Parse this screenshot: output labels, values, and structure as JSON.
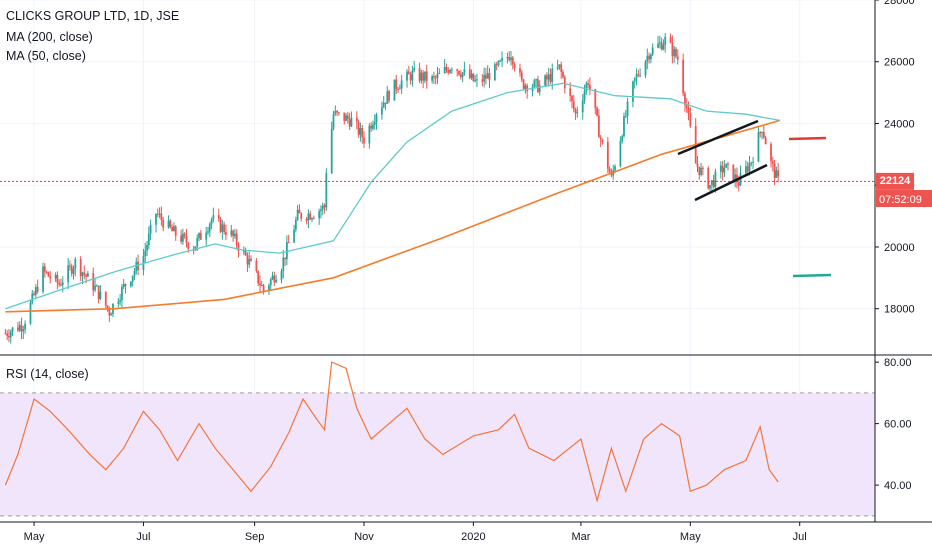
{
  "chart_data": [
    {
      "type": "candlestick",
      "title": "CLICKS GROUP LTD, 1D, JSE",
      "indicators": [
        "MA (200, close)",
        "MA (50, close)"
      ],
      "ylim": [
        16500,
        28000
      ],
      "y_ticks": [
        "28000",
        "26000",
        "24000",
        "22000",
        "20000",
        "18000"
      ],
      "x_ticks": [
        "May",
        "Jul",
        "Sep",
        "Nov",
        "2020",
        "Mar",
        "May",
        "Jul"
      ],
      "last_price": "22124",
      "countdown": "07:52:09",
      "price_keypoints": [
        [
          "2019-04-15",
          17200
        ],
        [
          "2019-04-25",
          17500
        ],
        [
          "2019-05-06",
          19200
        ],
        [
          "2019-05-15",
          18800
        ],
        [
          "2019-05-24",
          19500
        ],
        [
          "2019-06-05",
          18600
        ],
        [
          "2019-06-12",
          17900
        ],
        [
          "2019-06-20",
          18700
        ],
        [
          "2019-07-01",
          19700
        ],
        [
          "2019-07-08",
          21100
        ],
        [
          "2019-07-17",
          20500
        ],
        [
          "2019-07-29",
          20000
        ],
        [
          "2019-08-08",
          20900
        ],
        [
          "2019-08-19",
          20400
        ],
        [
          "2019-08-29",
          19500
        ],
        [
          "2019-09-06",
          18600
        ],
        [
          "2019-09-16",
          19400
        ],
        [
          "2019-09-25",
          21000
        ],
        [
          "2019-10-04",
          21100
        ],
        [
          "2019-10-10",
          21300
        ],
        [
          "2019-10-11",
          22500
        ],
        [
          "2019-10-15",
          24300
        ],
        [
          "2019-10-25",
          24100
        ],
        [
          "2019-11-01",
          23500
        ],
        [
          "2019-11-08",
          24400
        ],
        [
          "2019-11-18",
          25200
        ],
        [
          "2019-11-28",
          25600
        ],
        [
          "2019-12-10",
          25400
        ],
        [
          "2019-12-20",
          25900
        ],
        [
          "2020-01-03",
          25300
        ],
        [
          "2020-01-13",
          25700
        ],
        [
          "2020-01-22",
          26300
        ],
        [
          "2020-01-28",
          25300
        ],
        [
          "2020-02-07",
          25200
        ],
        [
          "2020-02-18",
          25800
        ],
        [
          "2020-02-27",
          24300
        ],
        [
          "2020-03-05",
          25400
        ],
        [
          "2020-03-12",
          23500
        ],
        [
          "2020-03-18",
          22200
        ],
        [
          "2020-03-24",
          23800
        ],
        [
          "2020-03-31",
          25400
        ],
        [
          "2020-04-08",
          26300
        ],
        [
          "2020-04-17",
          26700
        ],
        [
          "2020-04-24",
          26100
        ],
        [
          "2020-04-29",
          24500
        ],
        [
          "2020-05-04",
          22700
        ],
        [
          "2020-05-12",
          22000
        ],
        [
          "2020-05-20",
          22600
        ],
        [
          "2020-05-28",
          22100
        ],
        [
          "2020-06-04",
          22800
        ],
        [
          "2020-06-10",
          23900
        ],
        [
          "2020-06-15",
          22700
        ],
        [
          "2020-06-19",
          22124
        ]
      ],
      "ma50_keypoints": [
        [
          "2019-04-15",
          18000
        ],
        [
          "2019-05-15",
          18600
        ],
        [
          "2019-06-15",
          19200
        ],
        [
          "2019-07-15",
          19700
        ],
        [
          "2019-08-10",
          20100
        ],
        [
          "2019-08-25",
          19900
        ],
        [
          "2019-09-15",
          19800
        ],
        [
          "2019-10-15",
          20200
        ],
        [
          "2019-11-05",
          22100
        ],
        [
          "2019-11-25",
          23400
        ],
        [
          "2019-12-20",
          24400
        ],
        [
          "2020-01-20",
          25000
        ],
        [
          "2020-02-20",
          25300
        ],
        [
          "2020-03-20",
          24900
        ],
        [
          "2020-04-20",
          24800
        ],
        [
          "2020-05-10",
          24400
        ],
        [
          "2020-06-01",
          24300
        ],
        [
          "2020-06-20",
          24100
        ]
      ],
      "ma200_keypoints": [
        [
          "2019-04-15",
          17900
        ],
        [
          "2019-06-15",
          18000
        ],
        [
          "2019-08-15",
          18300
        ],
        [
          "2019-10-15",
          19000
        ],
        [
          "2019-12-15",
          20300
        ],
        [
          "2020-02-15",
          21700
        ],
        [
          "2020-04-15",
          23000
        ],
        [
          "2020-06-20",
          24100
        ]
      ]
    },
    {
      "type": "line",
      "title": "RSI (14, close)",
      "ylim": [
        28,
        82
      ],
      "y_ticks": [
        "80.00",
        "60.00",
        "40.00"
      ],
      "band": [
        30,
        70
      ],
      "rsi_keypoints": [
        [
          "2019-04-15",
          40
        ],
        [
          "2019-04-22",
          50
        ],
        [
          "2019-05-01",
          68
        ],
        [
          "2019-05-10",
          64
        ],
        [
          "2019-05-20",
          58
        ],
        [
          "2019-06-01",
          50
        ],
        [
          "2019-06-10",
          45
        ],
        [
          "2019-06-20",
          52
        ],
        [
          "2019-07-01",
          64
        ],
        [
          "2019-07-10",
          58
        ],
        [
          "2019-07-20",
          48
        ],
        [
          "2019-08-01",
          60
        ],
        [
          "2019-08-10",
          52
        ],
        [
          "2019-08-20",
          45
        ],
        [
          "2019-08-30",
          38
        ],
        [
          "2019-09-10",
          46
        ],
        [
          "2019-09-20",
          57
        ],
        [
          "2019-09-28",
          68
        ],
        [
          "2019-10-05",
          62
        ],
        [
          "2019-10-10",
          58
        ],
        [
          "2019-10-14",
          80
        ],
        [
          "2019-10-22",
          78
        ],
        [
          "2019-10-28",
          65
        ],
        [
          "2019-11-05",
          55
        ],
        [
          "2019-11-15",
          60
        ],
        [
          "2019-11-25",
          65
        ],
        [
          "2019-12-05",
          55
        ],
        [
          "2019-12-15",
          50
        ],
        [
          "2020-01-01",
          56
        ],
        [
          "2020-01-15",
          58
        ],
        [
          "2020-01-24",
          63
        ],
        [
          "2020-02-01",
          52
        ],
        [
          "2020-02-15",
          48
        ],
        [
          "2020-03-01",
          55
        ],
        [
          "2020-03-10",
          35
        ],
        [
          "2020-03-18",
          52
        ],
        [
          "2020-03-26",
          38
        ],
        [
          "2020-04-05",
          55
        ],
        [
          "2020-04-15",
          60
        ],
        [
          "2020-04-25",
          56
        ],
        [
          "2020-05-01",
          38
        ],
        [
          "2020-05-10",
          40
        ],
        [
          "2020-05-20",
          45
        ],
        [
          "2020-06-01",
          48
        ],
        [
          "2020-06-09",
          59
        ],
        [
          "2020-06-14",
          45
        ],
        [
          "2020-06-19",
          41
        ]
      ]
    }
  ],
  "colors": {
    "up": "#26a69a",
    "down": "#ef5350",
    "ma50": "#5ecacc",
    "ma200": "#f57c2b",
    "rsi": "#f3753a",
    "rsi_band": "#f1e5fc",
    "price_line": "#e53935",
    "trendline": "#131722"
  }
}
